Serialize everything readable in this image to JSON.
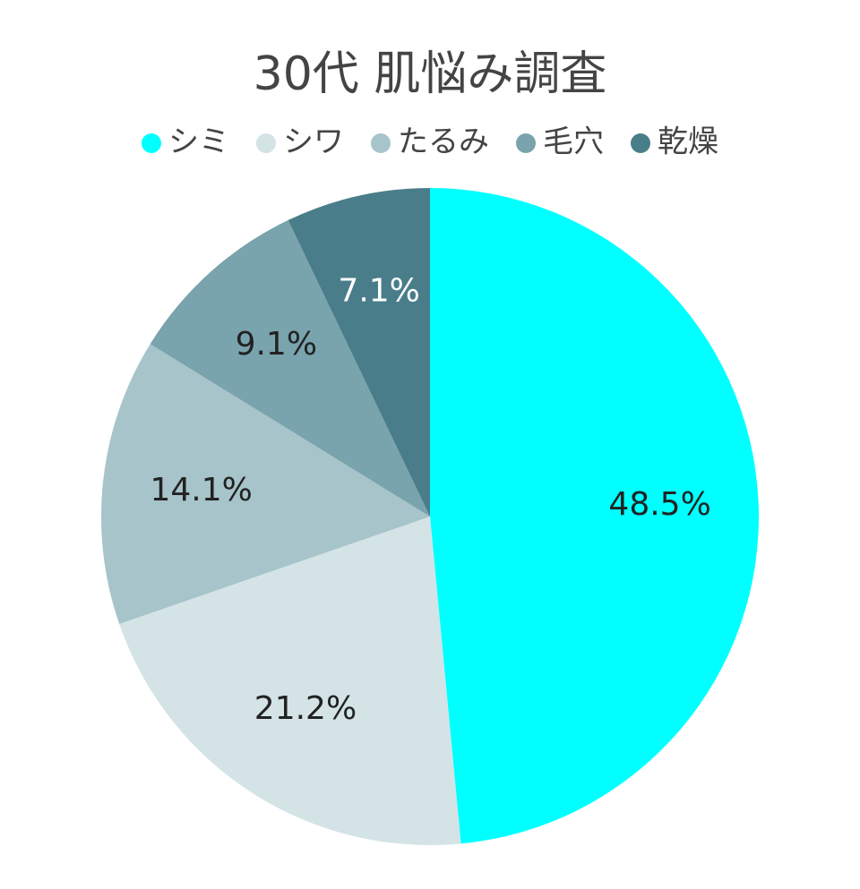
{
  "chart_data": {
    "type": "pie",
    "title": "30代 肌悩み調査",
    "categories": [
      "シミ",
      "シワ",
      "たるみ",
      "毛穴",
      "乾燥"
    ],
    "values": [
      48.5,
      21.2,
      14.1,
      9.1,
      7.1
    ],
    "value_labels": [
      "48.5%",
      "21.2%",
      "14.1%",
      "9.1%",
      "7.1%"
    ],
    "colors": [
      "#00ffff",
      "#d3e3e6",
      "#a6c4c9",
      "#79a3ad",
      "#4a7d8a"
    ],
    "legend": "top"
  }
}
